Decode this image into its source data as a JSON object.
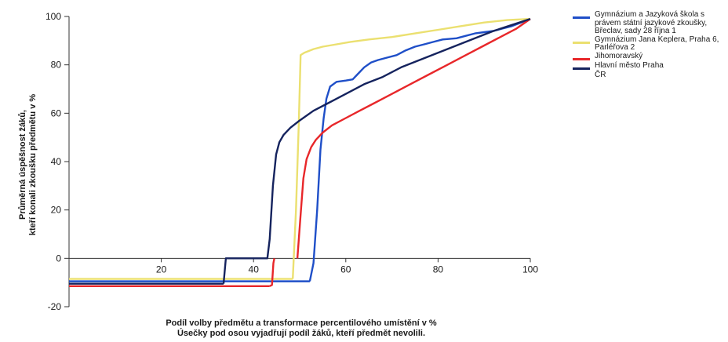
{
  "chart_data": {
    "type": "line",
    "xlabel": "Podíl volby předmětu a transformace percentilového umístění v %",
    "xlabel2": "Úsečky pod osou vyjadřují podíl žáků, kteří předmět nevolili.",
    "ylabel": "Průměrná úspěšnost žáků,",
    "ylabel2": "kteří konali zkoušku předmětu v %",
    "xlim": [
      0,
      100
    ],
    "ylim": [
      -20,
      100
    ],
    "xticks": [
      20,
      40,
      60,
      80,
      100
    ],
    "yticks": [
      -20,
      0,
      20,
      40,
      60,
      80,
      100
    ],
    "legend_position": "right",
    "series": [
      {
        "name": "Gymnázium a Jazyková škola s právem státní jazykové zkoušky, Břeclav, sady 28 října 1",
        "color": "#1f4fc8",
        "nonchoosers": {
          "x": [
            0,
            52.2
          ],
          "y": -9.5
        },
        "points": [
          [
            52.2,
            -9.5
          ],
          [
            53,
            -2
          ],
          [
            53.8,
            20
          ],
          [
            54.5,
            45
          ],
          [
            55.2,
            58
          ],
          [
            55.8,
            66
          ],
          [
            56.6,
            71
          ],
          [
            58,
            73
          ],
          [
            60,
            73.5
          ],
          [
            61.5,
            74
          ],
          [
            62.5,
            76
          ],
          [
            64,
            79
          ],
          [
            65.5,
            81
          ],
          [
            67,
            82
          ],
          [
            69,
            83
          ],
          [
            71,
            84
          ],
          [
            73,
            86
          ],
          [
            75,
            87.5
          ],
          [
            77,
            88.5
          ],
          [
            79,
            89.5
          ],
          [
            81,
            90.5
          ],
          [
            84,
            91
          ],
          [
            86,
            92
          ],
          [
            88,
            93
          ],
          [
            90,
            93.5
          ],
          [
            92,
            94
          ],
          [
            94,
            95
          ],
          [
            96,
            96
          ],
          [
            98,
            97.5
          ],
          [
            100,
            99
          ]
        ]
      },
      {
        "name": "Gymnázium Jana Keplera, Praha 6, Parléřova 2",
        "color": "#ebe070",
        "nonchoosers": {
          "x": [
            0,
            48.5
          ],
          "y": -8.5
        },
        "points": [
          [
            48.5,
            -8.5
          ],
          [
            49.2,
            20
          ],
          [
            49.8,
            55
          ],
          [
            50.2,
            84
          ],
          [
            51,
            85
          ],
          [
            53,
            86.5
          ],
          [
            55,
            87.5
          ],
          [
            58,
            88.5
          ],
          [
            61,
            89.5
          ],
          [
            65,
            90.5
          ],
          [
            70,
            91.5
          ],
          [
            75,
            93
          ],
          [
            80,
            94.5
          ],
          [
            85,
            96
          ],
          [
            90,
            97.5
          ],
          [
            95,
            98.5
          ],
          [
            100,
            99
          ]
        ]
      },
      {
        "name": "Jihomoravský",
        "color": "#e8272a",
        "nonchoosers": {
          "x": [
            0,
            43.5
          ],
          "y": -11.5
        },
        "points": [
          [
            43.5,
            -11.5
          ],
          [
            44,
            -11
          ],
          [
            44.3,
            -2
          ],
          [
            44.5,
            0
          ]
        ]
      },
      {
        "name": "Jihomoravský-curve",
        "color": "#e8272a",
        "nonchoosers": {
          "x": [
            0,
            0
          ],
          "y": 0
        },
        "points": [
          [
            49.5,
            0
          ],
          [
            50.2,
            18
          ],
          [
            50.8,
            33
          ],
          [
            51.5,
            41
          ],
          [
            52.5,
            46
          ],
          [
            53.5,
            49
          ],
          [
            55,
            52
          ],
          [
            57,
            55
          ],
          [
            60,
            58
          ],
          [
            63,
            61
          ],
          [
            66,
            64
          ],
          [
            70,
            68
          ],
          [
            74,
            72
          ],
          [
            78,
            76
          ],
          [
            82,
            80
          ],
          [
            86,
            84
          ],
          [
            90,
            88
          ],
          [
            94,
            92
          ],
          [
            97,
            95
          ],
          [
            100,
            99
          ]
        ]
      },
      {
        "name": "Hlavní město Praha",
        "color": "#15235e",
        "nonchoosers": {
          "x": [
            0,
            33.5
          ],
          "y": -10.5
        },
        "points": [
          [
            33.5,
            -10.5
          ],
          [
            34,
            0
          ],
          [
            43,
            0
          ],
          [
            43.5,
            8
          ],
          [
            44.2,
            30
          ],
          [
            44.9,
            43
          ],
          [
            45.6,
            48
          ],
          [
            46.5,
            51
          ],
          [
            48,
            54
          ],
          [
            50,
            57
          ],
          [
            53,
            61
          ],
          [
            56,
            64
          ],
          [
            60,
            68
          ],
          [
            64,
            72
          ],
          [
            68,
            75
          ],
          [
            72,
            79
          ],
          [
            76,
            82
          ],
          [
            80,
            85
          ],
          [
            84,
            88
          ],
          [
            88,
            91
          ],
          [
            92,
            94
          ],
          [
            96,
            96.5
          ],
          [
            100,
            99
          ]
        ]
      }
    ]
  },
  "legend": {
    "items": [
      {
        "label": "Gymnázium a Jazyková škola s právem státní jazykové zkoušky, Břeclav, sady 28 října 1",
        "color": "#1f4fc8"
      },
      {
        "label": "Gymnázium Jana Keplera, Praha 6, Parléřova 2",
        "color": "#ebe070"
      },
      {
        "label": "Jihomoravský",
        "color": "#e8272a"
      },
      {
        "label": "Hlavní město Praha",
        "color": "#15235e"
      },
      {
        "label": "ČR",
        "color": ""
      }
    ]
  }
}
